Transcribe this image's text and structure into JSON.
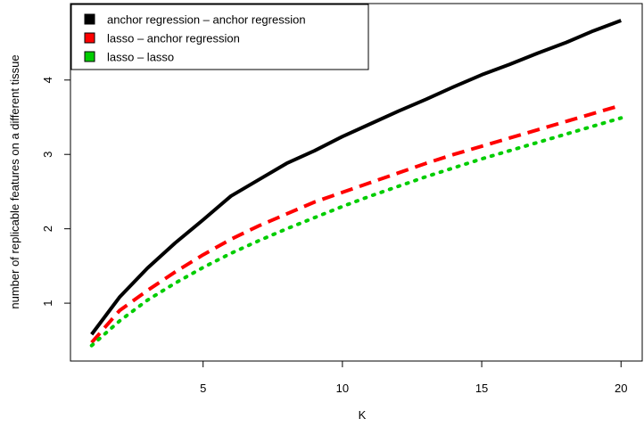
{
  "chart_data": {
    "type": "line",
    "title": "",
    "xlabel": "K",
    "ylabel": "number of replicable features on a different tissue",
    "xlim": [
      1,
      20
    ],
    "ylim": [
      0.4,
      4.85
    ],
    "x_ticks": [
      "5",
      "10",
      "15",
      "20"
    ],
    "y_ticks": [
      "1",
      "2",
      "3",
      "4"
    ],
    "grid": false,
    "legend_position": "top-left",
    "x": [
      1,
      2,
      3,
      4,
      5,
      6,
      7,
      8,
      9,
      10,
      11,
      12,
      13,
      14,
      15,
      16,
      17,
      18,
      19,
      20
    ],
    "series": [
      {
        "name": "anchor regression – anchor regression",
        "color": "#000000",
        "line_style": "solid",
        "values": [
          0.58,
          1.08,
          1.47,
          1.81,
          2.12,
          2.44,
          2.66,
          2.88,
          3.05,
          3.24,
          3.41,
          3.58,
          3.74,
          3.91,
          4.07,
          4.21,
          4.36,
          4.5,
          4.66,
          4.8
        ]
      },
      {
        "name": "lasso – anchor regression",
        "color": "#ff0000",
        "line_style": "dashed",
        "values": [
          0.47,
          0.9,
          1.17,
          1.42,
          1.65,
          1.86,
          2.04,
          2.2,
          2.36,
          2.49,
          2.62,
          2.75,
          2.88,
          3.0,
          3.11,
          3.22,
          3.33,
          3.44,
          3.55,
          3.66
        ]
      },
      {
        "name": "lasso – lasso",
        "color": "#00cd00",
        "line_style": "dotted",
        "values": [
          0.43,
          0.76,
          1.04,
          1.27,
          1.48,
          1.67,
          1.84,
          2.0,
          2.15,
          2.3,
          2.44,
          2.57,
          2.7,
          2.82,
          2.94,
          3.05,
          3.16,
          3.27,
          3.38,
          3.49
        ]
      }
    ]
  }
}
